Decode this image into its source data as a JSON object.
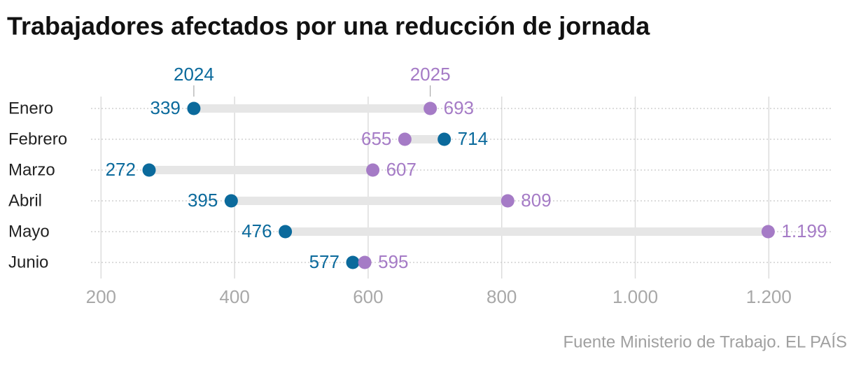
{
  "chart_data": {
    "type": "dumbbell",
    "title": "Trabajadores afectados por una reducción de jornada",
    "source": "Fuente Ministerio de Trabajo. EL PAÍS",
    "categories": [
      "Enero",
      "Febrero",
      "Marzo",
      "Abril",
      "Mayo",
      "Junio"
    ],
    "series": [
      {
        "name": "2024",
        "color": "#0b6a9c",
        "values": [
          339,
          714,
          272,
          395,
          476,
          577
        ]
      },
      {
        "name": "2025",
        "color": "#a57bc6",
        "values": [
          693,
          655,
          607,
          809,
          1199,
          595
        ],
        "value_labels": [
          "693",
          "655",
          "607",
          "809",
          "1.199",
          "595"
        ]
      }
    ],
    "xlim": [
      185,
      1294
    ],
    "xticks": [
      200,
      400,
      600,
      800,
      {
        "value": 1000,
        "label": "1.000"
      },
      {
        "value": 1200,
        "label": "1.200"
      }
    ],
    "grid": true
  }
}
